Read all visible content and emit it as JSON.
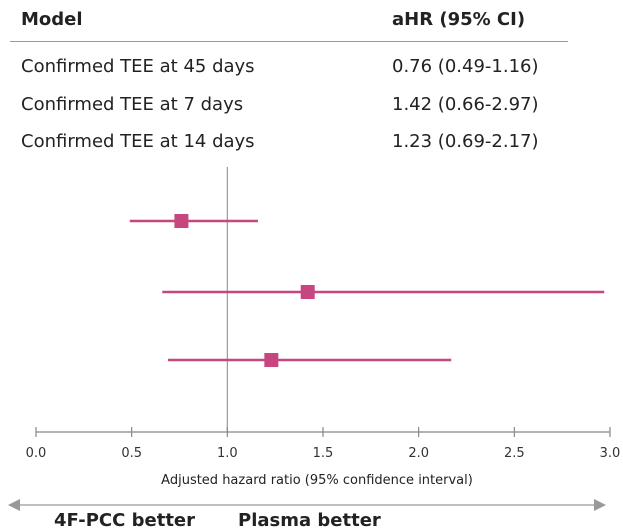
{
  "table": {
    "header_model": "Model",
    "header_ahr": "aHR (95% CI)",
    "rows": [
      {
        "label": "Confirmed TEE at 45 days",
        "value": "0.76 (0.49-1.16)"
      },
      {
        "label": "Confirmed TEE at 7 days",
        "value": "1.42 (0.66-2.97)"
      },
      {
        "label": "Confirmed TEE at 14 days",
        "value": "1.23 (0.69-2.17)"
      }
    ]
  },
  "direction": {
    "left": "4F-PCC better",
    "right": "Plasma better"
  },
  "colors": {
    "marker": "#c8467f",
    "axis": "#888888",
    "reference": "#999999"
  },
  "chart_data": {
    "type": "scatter",
    "subtype": "forest-plot",
    "xlabel": "Adjusted hazard ratio (95% confidence interval)",
    "xlim": [
      0.0,
      3.0
    ],
    "xticks": [
      0.0,
      0.5,
      1.0,
      1.5,
      2.0,
      2.5,
      3.0
    ],
    "xtick_labels": [
      "0.0",
      "0.5",
      "1.0",
      "1.5",
      "2.0",
      "2.5",
      "3.0"
    ],
    "reference_line": 1.0,
    "points": [
      {
        "label": "Confirmed TEE at 45 days",
        "estimate": 0.76,
        "lower": 0.49,
        "upper": 1.16
      },
      {
        "label": "Confirmed TEE at 7 days",
        "estimate": 1.42,
        "lower": 0.66,
        "upper": 2.97
      },
      {
        "label": "Confirmed TEE at 14 days",
        "estimate": 1.23,
        "lower": 0.69,
        "upper": 2.17
      }
    ]
  }
}
